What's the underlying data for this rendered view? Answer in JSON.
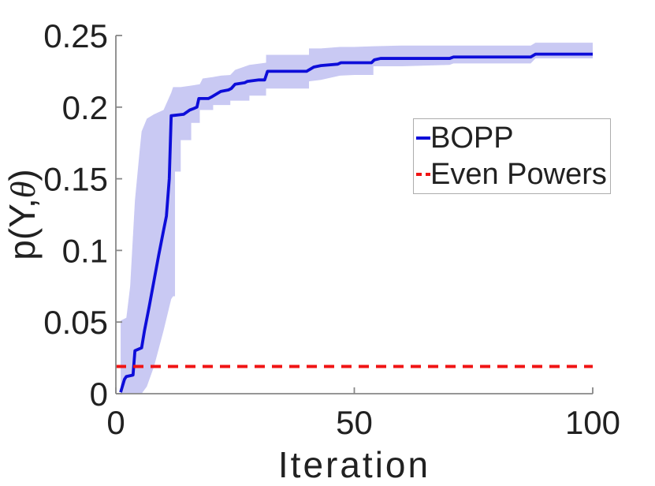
{
  "figure": {
    "background": "#ffffff",
    "text_color": "#212121",
    "axis_color": "#878787",
    "legend_border_color": "#adadad"
  },
  "chart_data": {
    "type": "line",
    "title": "",
    "xlabel": "Iteration",
    "ylabel": "p(Y,θ)",
    "ylabel_prefix": "p(Y,",
    "ylabel_theta": "θ",
    "ylabel_suffix": ")",
    "xlim": [
      0,
      100
    ],
    "ylim": [
      0,
      0.25
    ],
    "xticks": [
      0,
      50,
      100
    ],
    "xtick_labels": [
      "0",
      "50",
      "100"
    ],
    "yticks": [
      0,
      0.05,
      0.1,
      0.15,
      0.2,
      0.25
    ],
    "ytick_labels": [
      "0",
      "0.05",
      "0.1",
      "0.15",
      "0.2",
      "0.25"
    ],
    "grid": false,
    "legend_position": "middle-right",
    "series": [
      {
        "id": "bopp",
        "name": "BOPP",
        "color": "#0d0dd9",
        "style": "solid",
        "width": 3.8,
        "x": [
          1,
          1.8,
          2.2,
          3.6,
          4.0,
          5.4,
          6,
          7,
          8,
          9,
          10,
          10.6,
          11.2,
          11.6,
          14.2,
          15.5,
          16.3,
          17.0,
          17.4,
          19.4,
          20.0,
          21.0,
          22.0,
          23.6,
          24.2,
          25.0,
          27.0,
          27.6,
          30.0,
          31.2,
          31.8,
          40.0,
          41.5,
          43.0,
          46.5,
          47.2,
          53.6,
          54.2,
          55.5,
          70.0,
          70.8,
          87.0,
          88.0,
          100
        ],
        "y": [
          0.001,
          0.01,
          0.012,
          0.013,
          0.03,
          0.032,
          0.044,
          0.061,
          0.079,
          0.097,
          0.114,
          0.124,
          0.15,
          0.194,
          0.195,
          0.198,
          0.199,
          0.2,
          0.206,
          0.206,
          0.207,
          0.209,
          0.211,
          0.212,
          0.213,
          0.216,
          0.217,
          0.218,
          0.219,
          0.219,
          0.225,
          0.225,
          0.228,
          0.229,
          0.23,
          0.231,
          0.231,
          0.233,
          0.234,
          0.234,
          0.235,
          0.235,
          0.237,
          0.237
        ],
        "band": {
          "color": "#c9c9f3",
          "x": [
            1,
            2.2,
            3.0,
            4.0,
            5.0,
            5.4,
            6.5,
            8,
            10,
            11.6,
            12.0,
            12.4,
            12.4,
            13.6,
            13.6,
            15.8,
            15.8,
            17.6,
            17.6,
            18.2,
            20.4,
            20.4,
            22,
            24,
            24,
            25,
            25,
            28,
            28,
            31.5,
            31.5,
            40.5,
            40.5,
            43,
            47,
            50,
            54,
            54,
            60,
            70,
            70.8,
            87,
            88,
            100
          ],
          "lo": [
            0,
            0,
            0,
            0,
            0,
            0,
            0.005,
            0.019,
            0.044,
            0.066,
            0.068,
            0.068,
            0.155,
            0.155,
            0.177,
            0.177,
            0.189,
            0.189,
            0.198,
            0.198,
            0.198,
            0.2015,
            0.2015,
            0.2015,
            0.2045,
            0.2045,
            0.2045,
            0.2045,
            0.208,
            0.208,
            0.213,
            0.213,
            0.218,
            0.219,
            0.222,
            0.2225,
            0.2225,
            0.2285,
            0.2285,
            0.2295,
            0.2305,
            0.2305,
            0.234,
            0.234
          ],
          "hi": [
            0.051,
            0.053,
            0.075,
            0.135,
            0.17,
            0.183,
            0.192,
            0.195,
            0.198,
            0.21,
            0.214,
            0.214,
            0.214,
            0.214,
            0.214,
            0.215,
            0.215,
            0.216,
            0.216,
            0.22,
            0.221,
            0.221,
            0.222,
            0.2225,
            0.2225,
            0.226,
            0.226,
            0.2295,
            0.2295,
            0.231,
            0.2365,
            0.2365,
            0.241,
            0.241,
            0.242,
            0.242,
            0.2425,
            0.2425,
            0.243,
            0.243,
            0.243,
            0.243,
            0.245,
            0.245
          ]
        }
      },
      {
        "id": "even-powers",
        "name": "Even Powers",
        "color": "#f01414",
        "style": "dashed",
        "width": 4,
        "x": [
          0,
          100
        ],
        "y": [
          0.019,
          0.019
        ]
      }
    ]
  }
}
